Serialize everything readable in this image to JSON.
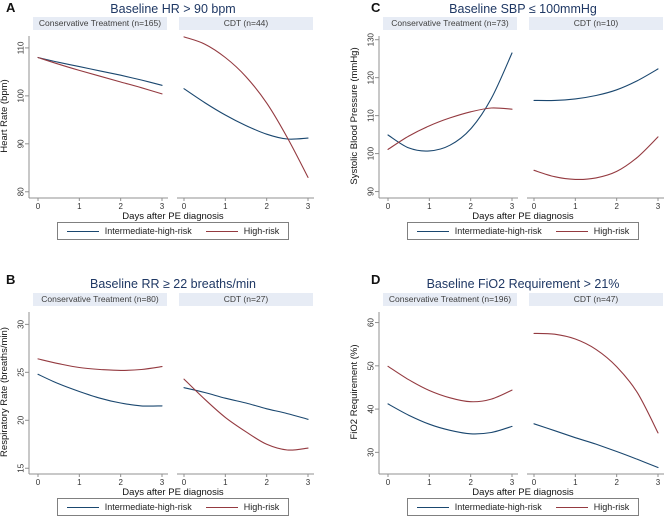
{
  "figure": {
    "background": "#ffffff",
    "xlabel_shared": "Days after PE diagnosis"
  },
  "colors": {
    "intermediate_high_risk": "#1a476f",
    "high_risk": "#943a40",
    "title_text": "#1f3864",
    "header_strip_bg": "#e7ecf5",
    "axis_line": "#909090"
  },
  "chart_data": [
    {
      "type": "line",
      "letter": "A",
      "title": "Baseline HR > 90 bpm",
      "ylabel": "Heart Rate (bpm)",
      "xlabel": "Days after PE diagnosis",
      "y_ticks": [
        80,
        90,
        100,
        110
      ],
      "x_ticks": [
        0,
        1,
        2,
        3
      ],
      "ylim": [
        78.7,
        112.9
      ],
      "xlim": [
        0,
        3
      ],
      "grid": false,
      "legend_position": "bottom",
      "subpanels": [
        {
          "header": "Conservative Treatment (n=165)",
          "series": [
            {
              "name": "Intermediate-high-risk",
              "color": "#1a476f",
              "x": [
                0,
                0.5,
                1,
                1.5,
                2,
                2.5,
                3
              ],
              "y": [
                108,
                107,
                106.1,
                105.2,
                104.3,
                103.3,
                102.2
              ]
            },
            {
              "name": "High-risk",
              "color": "#943a40",
              "x": [
                0,
                0.5,
                1,
                1.5,
                2,
                2.5,
                3
              ],
              "y": [
                108,
                106.6,
                105.3,
                104.1,
                102.9,
                101.7,
                100.4
              ]
            }
          ]
        },
        {
          "header": "CDT (n=44)",
          "series": [
            {
              "name": "Intermediate-high-risk",
              "color": "#1a476f",
              "x": [
                0,
                0.5,
                1,
                1.5,
                2,
                2.5,
                3
              ],
              "y": [
                101.5,
                98.6,
                96,
                93.8,
                92,
                91,
                91.2
              ]
            },
            {
              "name": "High-risk",
              "color": "#943a40",
              "x": [
                0,
                0.5,
                1,
                1.5,
                2,
                2.5,
                3
              ],
              "y": [
                112.3,
                110.8,
                108,
                104,
                98.5,
                91.3,
                83
              ]
            }
          ]
        }
      ],
      "legend": [
        {
          "label": "Intermediate-high-risk",
          "color": "#1a476f"
        },
        {
          "label": "High-risk",
          "color": "#943a40"
        }
      ]
    },
    {
      "type": "line",
      "letter": "C",
      "title": "Baseline SBP ≤ 100mmHg",
      "ylabel": "Systolic Blood Pressure (mmHg)",
      "xlabel": "Days after PE diagnosis",
      "y_ticks": [
        90,
        100,
        110,
        120,
        130
      ],
      "x_ticks": [
        0,
        1,
        2,
        3
      ],
      "ylim": [
        88.3,
        131.5
      ],
      "xlim": [
        0,
        3
      ],
      "grid": false,
      "legend_position": "bottom",
      "subpanels": [
        {
          "header": "Conservative Treatment (n=73)",
          "series": [
            {
              "name": "Intermediate-high-risk",
              "color": "#1a476f",
              "x": [
                0,
                0.5,
                1,
                1.5,
                2,
                2.5,
                3
              ],
              "y": [
                104.9,
                101.5,
                100.7,
                102.2,
                106.5,
                114.5,
                126.5
              ]
            },
            {
              "name": "High-risk",
              "color": "#943a40",
              "x": [
                0,
                0.5,
                1,
                1.5,
                2,
                2.5,
                3
              ],
              "y": [
                101.1,
                104.6,
                107.3,
                109.4,
                111,
                112,
                111.7
              ]
            }
          ]
        },
        {
          "header": "CDT (n=10)",
          "series": [
            {
              "name": "Intermediate-high-risk",
              "color": "#1a476f",
              "x": [
                0,
                0.5,
                1,
                1.5,
                2,
                2.5,
                3
              ],
              "y": [
                114,
                114,
                114.4,
                115.3,
                116.8,
                119.2,
                122.3
              ]
            },
            {
              "name": "High-risk",
              "color": "#943a40",
              "x": [
                0,
                0.5,
                1,
                1.5,
                2,
                2.5,
                3
              ],
              "y": [
                95.6,
                93.9,
                93.2,
                93.6,
                95.3,
                99,
                104.4
              ]
            }
          ]
        }
      ],
      "legend": [
        {
          "label": "Intermediate-high-risk",
          "color": "#1a476f"
        },
        {
          "label": "High-risk",
          "color": "#943a40"
        }
      ]
    },
    {
      "type": "line",
      "letter": "B",
      "title": "Baseline RR ≥ 22 breaths/min",
      "ylabel": "Respiratory Rate (breaths/min)",
      "xlabel": "Days after PE diagnosis",
      "y_ticks": [
        15,
        20,
        25,
        30
      ],
      "x_ticks": [
        0,
        1,
        2,
        3
      ],
      "ylim": [
        14.4,
        31.5
      ],
      "xlim": [
        0,
        3
      ],
      "grid": false,
      "legend_position": "bottom",
      "subpanels": [
        {
          "header": "Conservative Treatment (n=80)",
          "series": [
            {
              "name": "Intermediate-high-risk",
              "color": "#1a476f",
              "x": [
                0,
                0.5,
                1,
                1.5,
                2,
                2.5,
                3
              ],
              "y": [
                24.8,
                23.8,
                23,
                22.3,
                21.8,
                21.5,
                21.5
              ]
            },
            {
              "name": "High-risk",
              "color": "#943a40",
              "x": [
                0,
                0.5,
                1,
                1.5,
                2,
                2.5,
                3
              ],
              "y": [
                26.4,
                25.9,
                25.5,
                25.3,
                25.2,
                25.3,
                25.6
              ]
            }
          ]
        },
        {
          "header": "CDT (n=27)",
          "series": [
            {
              "name": "Intermediate-high-risk",
              "color": "#1a476f",
              "x": [
                0,
                0.5,
                1,
                1.5,
                2,
                2.5,
                3
              ],
              "y": [
                23.4,
                22.9,
                22.3,
                21.8,
                21.2,
                20.7,
                20.1
              ]
            },
            {
              "name": "High-risk",
              "color": "#943a40",
              "x": [
                0,
                0.5,
                1,
                1.5,
                2,
                2.5,
                3
              ],
              "y": [
                24.3,
                22.2,
                20.3,
                18.8,
                17.5,
                16.9,
                17.1
              ]
            }
          ]
        }
      ],
      "legend": [
        {
          "label": "Intermediate-high-risk",
          "color": "#1a476f"
        },
        {
          "label": "High-risk",
          "color": "#943a40"
        }
      ]
    },
    {
      "type": "line",
      "letter": "D",
      "title": "Baseline FiO2 Requirement > 21%",
      "ylabel": "FiO2 Requirement (%)",
      "xlabel": "Days after PE diagnosis",
      "y_ticks": [
        30,
        40,
        50,
        60
      ],
      "x_ticks": [
        0,
        1,
        2,
        3
      ],
      "ylim": [
        25,
        62.9
      ],
      "xlim": [
        0,
        3
      ],
      "grid": false,
      "legend_position": "bottom",
      "subpanels": [
        {
          "header": "Conservative Treatment (n=196)",
          "series": [
            {
              "name": "Intermediate-high-risk",
              "color": "#1a476f",
              "x": [
                0,
                0.5,
                1,
                1.5,
                2,
                2.5,
                3
              ],
              "y": [
                41.2,
                38.6,
                36.5,
                35.1,
                34.3,
                34.6,
                36
              ]
            },
            {
              "name": "High-risk",
              "color": "#943a40",
              "x": [
                0,
                0.5,
                1,
                1.5,
                2,
                2.5,
                3
              ],
              "y": [
                49.9,
                46.8,
                44.3,
                42.6,
                41.7,
                42.3,
                44.4
              ]
            }
          ]
        },
        {
          "header": "CDT (n=47)",
          "series": [
            {
              "name": "Intermediate-high-risk",
              "color": "#1a476f",
              "x": [
                0,
                0.5,
                1,
                1.5,
                2,
                2.5,
                3
              ],
              "y": [
                36.6,
                35,
                33.4,
                31.9,
                30.2,
                28.4,
                26.5
              ]
            },
            {
              "name": "High-risk",
              "color": "#943a40",
              "x": [
                0,
                0.5,
                1,
                1.5,
                2,
                2.5,
                3
              ],
              "y": [
                57.5,
                57.3,
                56.2,
                53.8,
                49.8,
                43.8,
                34.5
              ]
            }
          ]
        }
      ],
      "legend": [
        {
          "label": "Intermediate-high-risk",
          "color": "#1a476f"
        },
        {
          "label": "High-risk",
          "color": "#943a40"
        }
      ]
    }
  ]
}
